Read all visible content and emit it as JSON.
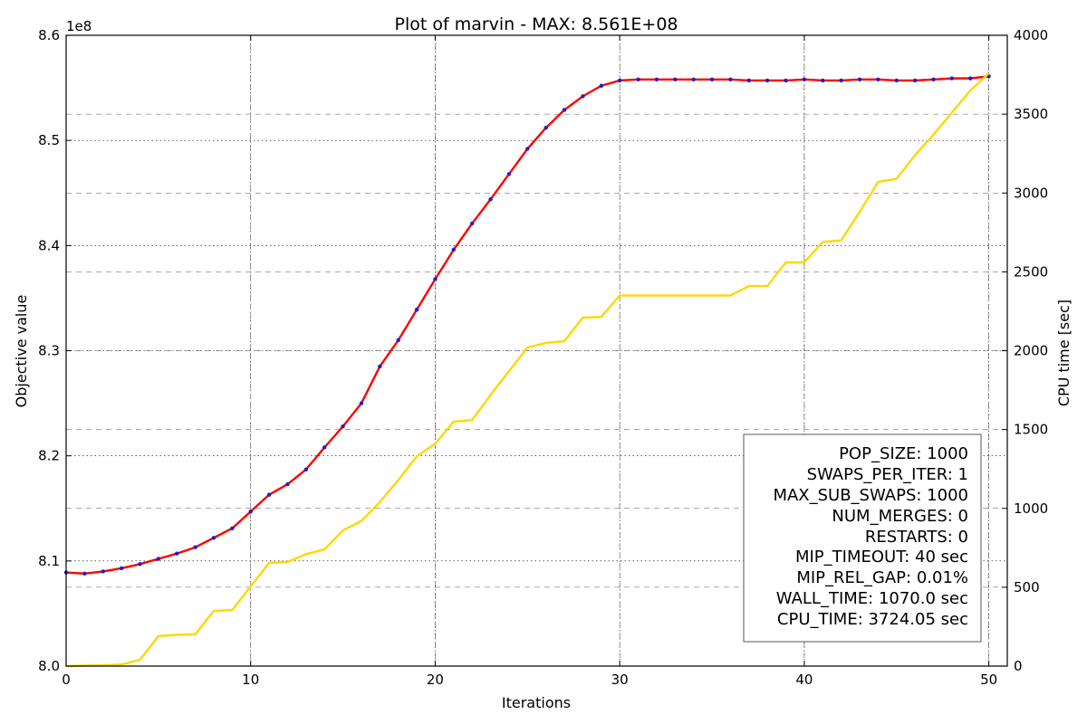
{
  "chart_data": {
    "type": "line",
    "title": "Plot of marvin - MAX: 8.561E+08",
    "xlabel": "Iterations",
    "ylabel": "Objective value",
    "y2label": "CPU time [sec]",
    "y_offset_label": "1e8",
    "xlim": [
      0,
      51
    ],
    "ylim": [
      8.0,
      8.6
    ],
    "y2lim": [
      0,
      4000
    ],
    "grid": true,
    "x_ticks": [
      0,
      10,
      20,
      30,
      40,
      50
    ],
    "y_ticks": [
      8.0,
      8.1,
      8.2,
      8.3,
      8.4,
      8.5,
      8.6
    ],
    "y2_ticks": [
      0,
      500,
      1000,
      1500,
      2000,
      2500,
      3000,
      3500,
      4000
    ],
    "x_tick_labels": [
      "0",
      "10",
      "20",
      "30",
      "40",
      "50"
    ],
    "y_tick_labels": [
      "8.0",
      "8.1",
      "8.2",
      "8.3",
      "8.4",
      "8.5",
      "8.6"
    ],
    "y2_tick_labels": [
      "0",
      "500",
      "1000",
      "1500",
      "2000",
      "2500",
      "3000",
      "3500",
      "4000"
    ],
    "x": [
      0,
      1,
      2,
      3,
      4,
      5,
      6,
      7,
      8,
      9,
      10,
      11,
      12,
      13,
      14,
      15,
      16,
      17,
      18,
      19,
      20,
      21,
      22,
      23,
      24,
      25,
      26,
      27,
      28,
      29,
      30,
      31,
      32,
      33,
      34,
      35,
      36,
      37,
      38,
      39,
      40,
      41,
      42,
      43,
      44,
      45,
      46,
      47,
      48,
      49,
      50
    ],
    "series": [
      {
        "axis": "left",
        "color": "#ff0000",
        "marker_color": "#1f1fcc",
        "values": [
          8.089,
          8.088,
          8.09,
          8.093,
          8.097,
          8.102,
          8.107,
          8.113,
          8.122,
          8.131,
          8.147,
          8.163,
          8.173,
          8.187,
          8.208,
          8.228,
          8.25,
          8.285,
          8.31,
          8.339,
          8.368,
          8.396,
          8.421,
          8.444,
          8.468,
          8.492,
          8.512,
          8.529,
          8.542,
          8.552,
          8.557,
          8.558,
          8.558,
          8.558,
          8.558,
          8.558,
          8.558,
          8.557,
          8.557,
          8.557,
          8.558,
          8.557,
          8.557,
          8.558,
          8.558,
          8.557,
          8.557,
          8.558,
          8.559,
          8.559,
          8.561
        ]
      },
      {
        "axis": "right",
        "color": "#ffd700",
        "values": [
          0,
          3,
          5,
          10,
          40,
          190,
          198,
          202,
          350,
          355,
          505,
          655,
          660,
          710,
          740,
          860,
          920,
          1040,
          1180,
          1330,
          1410,
          1550,
          1560,
          1720,
          1870,
          2020,
          2050,
          2060,
          2210,
          2215,
          2350,
          2350,
          2350,
          2350,
          2350,
          2350,
          2350,
          2410,
          2410,
          2560,
          2560,
          2690,
          2700,
          2880,
          3070,
          3090,
          3240,
          3370,
          3510,
          3650,
          3760
        ]
      }
    ],
    "legend_box": {
      "placement": "lower right",
      "lines": [
        "POP_SIZE: 1000",
        "SWAPS_PER_ITER: 1",
        "MAX_SUB_SWAPS: 1000",
        "NUM_MERGES: 0",
        "RESTARTS: 0",
        "MIP_TIMEOUT: 40 sec",
        "MIP_REL_GAP: 0.01%",
        "WALL_TIME: 1070.0 sec",
        "CPU_TIME: 3724.05 sec"
      ]
    }
  }
}
